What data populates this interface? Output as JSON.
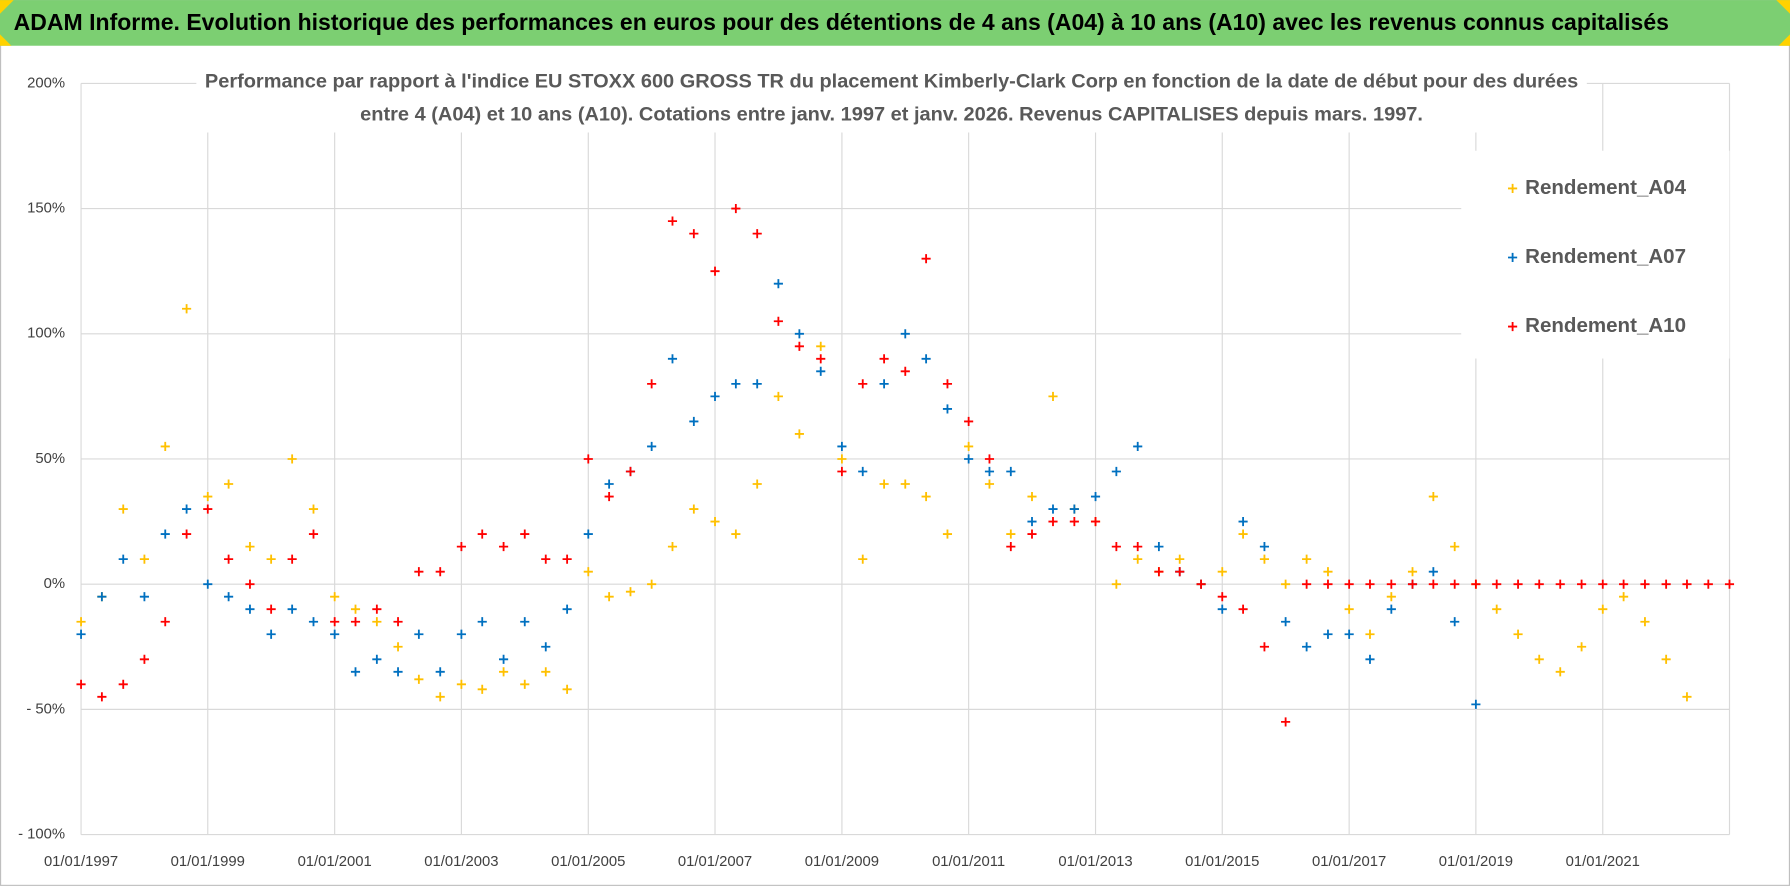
{
  "header": {
    "title": "ADAM Informe. Evolution historique des performances en euros pour des détentions de 4 ans (A04) à 10 ans (A10) avec les revenus connus capitalisés"
  },
  "chart_data": {
    "type": "scatter",
    "title": [
      "Performance par rapport à l'indice EU STOXX 600 GROSS TR  du placement Kimberly-Clark Corp en fonction de la date de début pour des durées",
      "entre 4 (A04) et 10 ans (A10). Cotations entre janv. 1997 et janv. 2026. Revenus CAPITALISES depuis mars. 1997."
    ],
    "x": [
      "1997-01-01",
      "1997-05-01",
      "1997-09-01",
      "1998-01-01",
      "1998-05-01",
      "1998-09-01",
      "1999-01-01",
      "1999-05-01",
      "1999-09-01",
      "2000-01-01",
      "2000-05-01",
      "2000-09-01",
      "2001-01-01",
      "2001-05-01",
      "2001-09-01",
      "2002-01-01",
      "2002-05-01",
      "2002-09-01",
      "2003-01-01",
      "2003-05-01",
      "2003-09-01",
      "2004-01-01",
      "2004-05-01",
      "2004-09-01",
      "2005-01-01",
      "2005-05-01",
      "2005-09-01",
      "2006-01-01",
      "2006-05-01",
      "2006-09-01",
      "2007-01-01",
      "2007-05-01",
      "2007-09-01",
      "2008-01-01",
      "2008-05-01",
      "2008-09-01",
      "2009-01-01",
      "2009-05-01",
      "2009-09-01",
      "2010-01-01",
      "2010-05-01",
      "2010-09-01",
      "2011-01-01",
      "2011-05-01",
      "2011-09-01",
      "2012-01-01",
      "2012-05-01",
      "2012-09-01",
      "2013-01-01",
      "2013-05-01",
      "2013-09-01",
      "2014-01-01",
      "2014-05-01",
      "2014-09-01",
      "2015-01-01",
      "2015-05-01",
      "2015-09-01",
      "2016-01-01",
      "2016-05-01",
      "2016-09-01",
      "2017-01-01",
      "2017-05-01",
      "2017-09-01",
      "2018-01-01",
      "2018-05-01",
      "2018-09-01",
      "2019-01-01",
      "2019-05-01",
      "2019-09-01",
      "2020-01-01",
      "2020-05-01",
      "2020-09-01",
      "2021-01-01",
      "2021-05-01",
      "2021-09-01",
      "2022-01-01",
      "2022-05-01",
      "2022-09-01",
      "2023-01-01"
    ],
    "series": [
      {
        "name": "Rendement_A04",
        "color": "#ffc000",
        "values": [
          -15,
          -5,
          30,
          10,
          55,
          110,
          35,
          40,
          15,
          10,
          50,
          30,
          -5,
          -10,
          -15,
          -25,
          -38,
          -45,
          -40,
          -42,
          -35,
          -40,
          -35,
          -42,
          5,
          -5,
          -3,
          0,
          15,
          30,
          25,
          20,
          40,
          75,
          60,
          95,
          50,
          10,
          40,
          40,
          35,
          20,
          55,
          40,
          20,
          35,
          75,
          30,
          25,
          0,
          10,
          5,
          10,
          0,
          5,
          20,
          10,
          0,
          10,
          5,
          -10,
          -20,
          -5,
          5,
          35,
          15,
          0,
          -10,
          -20,
          -30,
          -35,
          -25,
          -10,
          -5,
          -15,
          -30,
          -45,
          null,
          null
        ]
      },
      {
        "name": "Rendement_A07",
        "color": "#0070c0",
        "values": [
          -20,
          -5,
          10,
          -5,
          20,
          30,
          0,
          -5,
          -10,
          -20,
          -10,
          -15,
          -20,
          -35,
          -30,
          -35,
          -20,
          -35,
          -20,
          -15,
          -30,
          -15,
          -25,
          -10,
          20,
          40,
          45,
          55,
          90,
          65,
          75,
          80,
          80,
          120,
          100,
          85,
          55,
          45,
          80,
          100,
          90,
          70,
          50,
          45,
          45,
          25,
          30,
          30,
          35,
          45,
          55,
          15,
          5,
          0,
          -10,
          25,
          15,
          -15,
          -25,
          -20,
          -20,
          -30,
          -10,
          0,
          5,
          -15,
          -48,
          null,
          null,
          null,
          null,
          null,
          null,
          null,
          null,
          null,
          null,
          null,
          null
        ]
      },
      {
        "name": "Rendement_A10",
        "color": "#ff0000",
        "values": [
          -40,
          -45,
          -40,
          -30,
          -15,
          20,
          30,
          10,
          0,
          -10,
          10,
          20,
          -15,
          -15,
          -10,
          -15,
          5,
          5,
          15,
          20,
          15,
          20,
          10,
          10,
          50,
          35,
          45,
          80,
          145,
          140,
          125,
          150,
          140,
          105,
          95,
          90,
          45,
          80,
          90,
          85,
          130,
          80,
          65,
          50,
          15,
          20,
          25,
          25,
          25,
          15,
          15,
          5,
          5,
          0,
          -5,
          -10,
          -25,
          -55,
          0,
          0,
          0,
          0,
          0,
          0,
          0,
          0,
          0,
          0,
          0,
          0,
          0,
          0,
          0,
          0,
          0,
          0,
          0,
          0,
          0
        ]
      }
    ],
    "xlim": [
      "1997-01-01",
      "2023-01-01"
    ],
    "xticks": [
      {
        "value": "1997-01-01",
        "label": "01/01/1997"
      },
      {
        "value": "1999-01-01",
        "label": "01/01/1999"
      },
      {
        "value": "2001-01-01",
        "label": "01/01/2001"
      },
      {
        "value": "2003-01-01",
        "label": "01/01/2003"
      },
      {
        "value": "2005-01-01",
        "label": "01/01/2005"
      },
      {
        "value": "2007-01-01",
        "label": "01/01/2007"
      },
      {
        "value": "2009-01-01",
        "label": "01/01/2009"
      },
      {
        "value": "2011-01-01",
        "label": "01/01/2011"
      },
      {
        "value": "2013-01-01",
        "label": "01/01/2013"
      },
      {
        "value": "2015-01-01",
        "label": "01/01/2015"
      },
      {
        "value": "2017-01-01",
        "label": "01/01/2017"
      },
      {
        "value": "2019-01-01",
        "label": "01/01/2019"
      },
      {
        "value": "2021-01-01",
        "label": "01/01/2021"
      }
    ],
    "ylim": [
      -100,
      200
    ],
    "yticks": [
      {
        "value": -100,
        "label": "- 100%"
      },
      {
        "value": -50,
        "label": "- 50%"
      },
      {
        "value": 0,
        "label": "0%"
      },
      {
        "value": 50,
        "label": "50%"
      },
      {
        "value": 100,
        "label": "100%"
      },
      {
        "value": 150,
        "label": "150%"
      },
      {
        "value": 200,
        "label": "200%"
      }
    ],
    "grid": true,
    "legend_position": "right"
  }
}
